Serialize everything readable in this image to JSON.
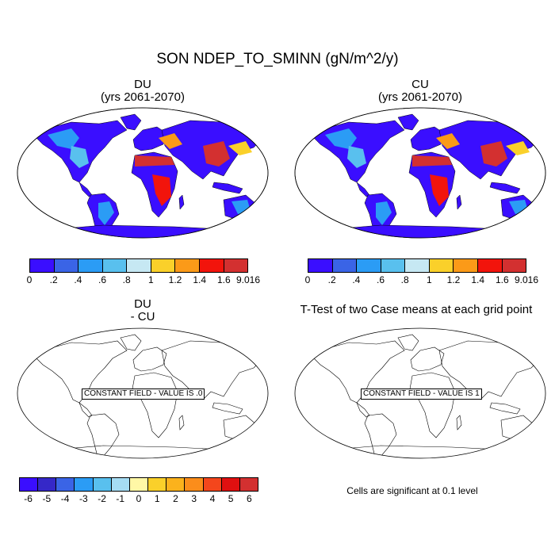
{
  "title": "SON NDEP_TO_SMINN (gN/m^2/y)",
  "panels": {
    "du": {
      "title": "DU",
      "subtitle": "(yrs 2061-2070)"
    },
    "cu": {
      "title": "CU",
      "subtitle": "(yrs 2061-2070)"
    },
    "diff": {
      "title": "DU",
      "subtitle": "- CU",
      "constant_field_label": "CONSTANT FIELD - VALUE IS .0"
    },
    "ttest": {
      "title": "T-Test of two Case means at each grid point",
      "constant_field_label": "CONSTANT FIELD - VALUE IS 1"
    }
  },
  "colorbars": {
    "top": {
      "colors": [
        "#3a0eff",
        "#3a64e6",
        "#2b9cf5",
        "#59c0ee",
        "#c6e8f3",
        "#fad02a",
        "#fb9a18",
        "#f2140c",
        "#d33030"
      ],
      "labels": [
        "0",
        ".2",
        ".4",
        ".6",
        ".8",
        "1",
        "1.2",
        "1.4",
        "1.6",
        "9.016"
      ]
    },
    "bottom": {
      "colors": [
        "#3a0eff",
        "#3528c8",
        "#3a64e6",
        "#2b9cf5",
        "#59c0ee",
        "#a6dcf3",
        "#fff8a6",
        "#fad02a",
        "#fbb21c",
        "#fb8d1b",
        "#f4461c",
        "#e01010",
        "#d33030"
      ],
      "labels": [
        "-6",
        "-5",
        "-4",
        "-3",
        "-2",
        "-1",
        "0",
        "1",
        "2",
        "3",
        "4",
        "5",
        "6"
      ]
    }
  },
  "footnote": "Cells are significant at 0.1 level",
  "map_colors": {
    "background": "#3a0eff",
    "outline": "#000000",
    "ocean": "#ffffff"
  }
}
